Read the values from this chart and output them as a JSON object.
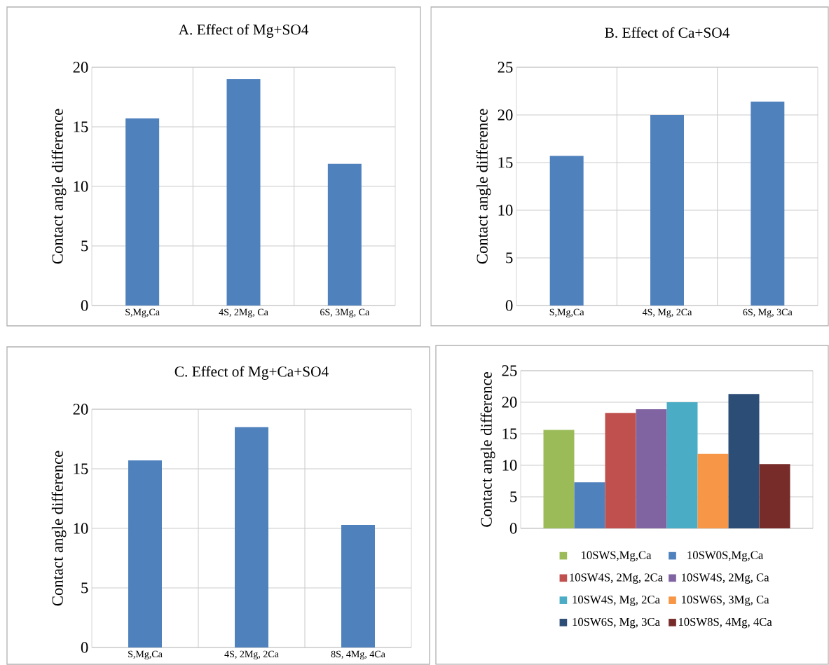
{
  "chart_data": [
    {
      "type": "bar",
      "title": "A. Effect of Mg+SO4",
      "ylabel": "Contact angle difference",
      "categories": [
        "S,Mg,Ca",
        "4S, 2Mg, Ca",
        "6S, 3Mg, Ca"
      ],
      "values": [
        15.7,
        19.0,
        11.9
      ],
      "color": "#4f81bd",
      "ylim": [
        0,
        20
      ],
      "yticks": [
        0,
        5,
        10,
        15,
        20
      ],
      "grid": true
    },
    {
      "type": "bar",
      "title": "B. Effect of Ca+SO4",
      "ylabel": "Contact angle difference",
      "categories": [
        "S,Mg,Ca",
        "4S, Mg, 2Ca",
        "6S, Mg, 3Ca"
      ],
      "values": [
        15.7,
        20.0,
        21.4
      ],
      "color": "#4f81bd",
      "ylim": [
        0,
        25
      ],
      "yticks": [
        0,
        5,
        10,
        15,
        20,
        25
      ],
      "grid": true
    },
    {
      "type": "bar",
      "title": "C. Effect of Mg+Ca+SO4",
      "ylabel": "Contact angle difference",
      "categories": [
        "S,Mg,Ca",
        "4S, 2Mg, 2Ca",
        "8S, 4Mg, 4Ca"
      ],
      "values": [
        15.7,
        18.5,
        10.3
      ],
      "color": "#4f81bd",
      "ylim": [
        0,
        20
      ],
      "yticks": [
        0,
        5,
        10,
        15,
        20
      ],
      "grid": true
    },
    {
      "type": "bar",
      "ylabel": "Contact angle difference",
      "categories": [
        null
      ],
      "ylim": [
        0,
        25
      ],
      "yticks": [
        0,
        5,
        10,
        15,
        20,
        25
      ],
      "grid": "y",
      "legend": "bottom",
      "series": [
        {
          "name": "10SWS,Mg,Ca",
          "color": "#9bbb59",
          "values": [
            15.6
          ]
        },
        {
          "name": "10SW0S,Mg,Ca",
          "color": "#4f81bd",
          "values": [
            7.3
          ]
        },
        {
          "name": "10SW4S, 2Mg, 2Ca",
          "color": "#c0504d",
          "values": [
            18.3
          ]
        },
        {
          "name": "10SW4S, 2Mg, Ca",
          "color": "#8064a2",
          "values": [
            18.9
          ]
        },
        {
          "name": "10SW4S, Mg, 2Ca",
          "color": "#4bacc6",
          "values": [
            20.0
          ]
        },
        {
          "name": "10SW6S, 3Mg, Ca",
          "color": "#f79646",
          "values": [
            11.8
          ]
        },
        {
          "name": "10SW6S, Mg, 3Ca",
          "color": "#2c4d75",
          "values": [
            21.3
          ]
        },
        {
          "name": "10SW8S, 4Mg, 4Ca",
          "color": "#772c2a",
          "values": [
            10.2
          ]
        }
      ]
    }
  ]
}
